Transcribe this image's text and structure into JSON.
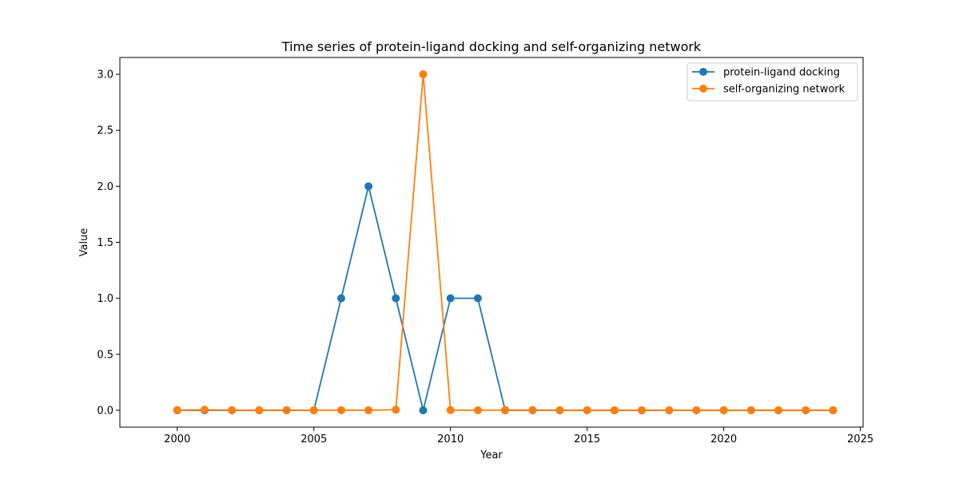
{
  "chart_data": {
    "type": "line",
    "title": "Time series of protein-ligand docking and self-organizing network",
    "xlabel": "Year",
    "ylabel": "Value",
    "xlim": [
      1997.9,
      2025.1
    ],
    "ylim": [
      -0.15,
      3.15
    ],
    "xticks": [
      2000,
      2005,
      2010,
      2015,
      2020,
      2025
    ],
    "xtick_labels": [
      "2000",
      "2005",
      "2010",
      "2015",
      "2020",
      "2025"
    ],
    "yticks": [
      0.0,
      0.5,
      1.0,
      1.5,
      2.0,
      2.5,
      3.0
    ],
    "ytick_labels": [
      "0.0",
      "0.5",
      "1.0",
      "1.5",
      "2.0",
      "2.5",
      "3.0"
    ],
    "grid": false,
    "legend_position": "top-right",
    "x": [
      2000,
      2001,
      2002,
      2003,
      2004,
      2005,
      2006,
      2007,
      2008,
      2009,
      2010,
      2011,
      2012,
      2013,
      2014,
      2015,
      2016,
      2017,
      2018,
      2019,
      2020,
      2021,
      2022,
      2023,
      2024
    ],
    "series": [
      {
        "name": "protein-ligand docking",
        "color": "#1f77b4",
        "values": [
          0,
          0,
          0,
          0,
          0,
          0,
          1,
          2,
          1,
          0,
          1,
          1,
          0,
          0,
          0,
          0,
          0,
          0,
          0,
          0,
          0,
          0,
          0,
          0,
          0
        ]
      },
      {
        "name": "self-organizing network",
        "color": "#ff7f0e",
        "values": [
          0.002,
          0.005,
          0.001,
          0.001,
          0.002,
          0.001,
          0.001,
          0.001,
          0.005,
          3,
          0.002,
          0.001,
          0.002,
          0.002,
          0.001,
          0.001,
          0.001,
          0.001,
          0.001,
          0.001,
          0.001,
          0.001,
          0.001,
          0.001,
          0.001
        ]
      }
    ]
  }
}
